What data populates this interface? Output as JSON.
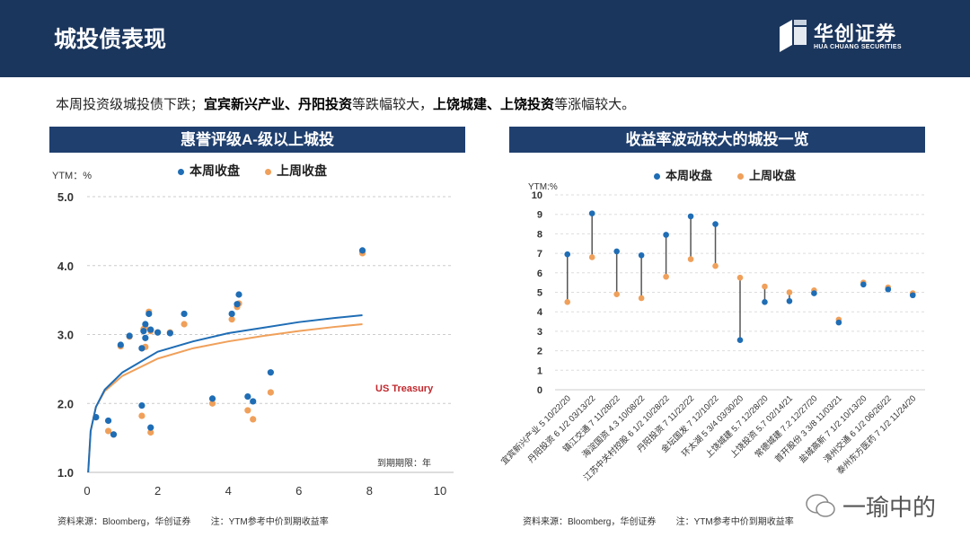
{
  "header": {
    "title": "城投债表现",
    "logo_cn": "华创证券",
    "logo_en": "HUA CHUANG SECURITIES"
  },
  "summary": {
    "p1": "本周投资级城投债下跌；",
    "b1": "宜宾新兴产业、丹阳投资",
    "p2": "等跌幅较大，",
    "b2": "上饶城建、上饶投资",
    "p3": "等涨幅较大。"
  },
  "colors": {
    "this_week": "#1f6db5",
    "last_week": "#f0a05a",
    "navy": "#1b365d"
  },
  "legend": {
    "this_week": "本周收盘",
    "last_week": "上周收盘"
  },
  "watermark": "一瑜中的",
  "chart_data": [
    {
      "type": "scatter",
      "title": "惠誉评级A-级以上城投",
      "ylabel": "YTM：%",
      "xlabel": "到期期限：年",
      "xlim": [
        0,
        10
      ],
      "ylim": [
        1.0,
        5.0
      ],
      "xticks": [
        0,
        2,
        4,
        6,
        8,
        10
      ],
      "yticks": [
        "1.0",
        "2.0",
        "3.0",
        "4.0",
        "5.0"
      ],
      "annotation": "US Treasury",
      "series": [
        {
          "name": "本周收盘",
          "points": [
            [
              0.25,
              1.8
            ],
            [
              0.6,
              1.75
            ],
            [
              0.75,
              1.55
            ],
            [
              0.95,
              2.85
            ],
            [
              1.2,
              2.98
            ],
            [
              1.55,
              2.8
            ],
            [
              1.6,
              3.05
            ],
            [
              1.65,
              3.15
            ],
            [
              1.65,
              2.95
            ],
            [
              1.75,
              3.3
            ],
            [
              1.8,
              3.07
            ],
            [
              2.0,
              3.03
            ],
            [
              1.55,
              1.97
            ],
            [
              1.8,
              1.65
            ],
            [
              2.35,
              3.02
            ],
            [
              2.75,
              3.3
            ],
            [
              3.55,
              2.07
            ],
            [
              4.1,
              3.3
            ],
            [
              4.25,
              3.44
            ],
            [
              4.3,
              3.58
            ],
            [
              4.55,
              2.1
            ],
            [
              4.7,
              2.03
            ],
            [
              5.2,
              2.45
            ],
            [
              7.8,
              4.22
            ]
          ],
          "curve": [
            [
              0.03,
              1.0
            ],
            [
              0.1,
              1.6
            ],
            [
              0.25,
              1.95
            ],
            [
              0.5,
              2.2
            ],
            [
              1,
              2.45
            ],
            [
              2,
              2.75
            ],
            [
              3,
              2.9
            ],
            [
              4,
              3.02
            ],
            [
              5,
              3.1
            ],
            [
              6,
              3.18
            ],
            [
              7,
              3.24
            ],
            [
              7.8,
              3.28
            ]
          ]
        },
        {
          "name": "上周收盘",
          "points": [
            [
              0.25,
              1.8
            ],
            [
              0.6,
              1.6
            ],
            [
              0.75,
              1.55
            ],
            [
              0.95,
              2.83
            ],
            [
              1.2,
              2.97
            ],
            [
              1.55,
              2.8
            ],
            [
              1.6,
              3.08
            ],
            [
              1.65,
              3.1
            ],
            [
              1.65,
              2.82
            ],
            [
              1.75,
              3.33
            ],
            [
              1.8,
              3.05
            ],
            [
              2.0,
              3.03
            ],
            [
              1.55,
              1.82
            ],
            [
              1.8,
              1.58
            ],
            [
              2.35,
              3.03
            ],
            [
              2.75,
              3.15
            ],
            [
              3.55,
              2.0
            ],
            [
              4.1,
              3.22
            ],
            [
              4.25,
              3.4
            ],
            [
              4.3,
              3.45
            ],
            [
              4.55,
              1.9
            ],
            [
              4.7,
              1.77
            ],
            [
              5.2,
              2.16
            ],
            [
              7.8,
              4.18
            ]
          ],
          "curve": [
            [
              0.03,
              1.0
            ],
            [
              0.1,
              1.6
            ],
            [
              0.25,
              1.95
            ],
            [
              0.5,
              2.18
            ],
            [
              1,
              2.4
            ],
            [
              2,
              2.65
            ],
            [
              3,
              2.8
            ],
            [
              4,
              2.9
            ],
            [
              5,
              2.98
            ],
            [
              6,
              3.05
            ],
            [
              7,
              3.11
            ],
            [
              7.8,
              3.15
            ]
          ]
        }
      ],
      "source": "资料来源：Bloomberg，华创证券        注：YTM参考中价到期收益率"
    },
    {
      "type": "dumbbell",
      "title": "收益率波动较大的城投一览",
      "ylabel": "YTM:%",
      "ylim": [
        0,
        10
      ],
      "yticks": [
        0,
        1,
        2,
        3,
        4,
        5,
        6,
        7,
        8,
        9,
        10
      ],
      "categories": [
        "宜宾新兴产业 5 10/22/20",
        "丹阳投资 6 1/2 03/13/22",
        "镇江交通 7 11/28/22",
        "海淀国资 4.3 10/08/22",
        "江苏中关村控股 6 1/2 10/28/22",
        "丹阳投资 7 11/22/22",
        "金坛国发 7 12/10/22",
        "环太湖 5 3/4 03/30/20",
        "上饶城建 5.7 12/28/20",
        "上饶投资 5.7 02/14/21",
        "常德城建 7.2 12/27/20",
        "首开股份 3 3/8 11/03/21",
        "盐城高新 7 1/2 10/13/20",
        "漳州交通 6 1/2 06/26/22",
        "泰州东方医药 7 1/2 11/24/20"
      ],
      "series": [
        {
          "name": "本周收盘",
          "values": [
            6.95,
            9.05,
            7.1,
            6.9,
            7.95,
            8.9,
            8.5,
            2.55,
            4.5,
            4.55,
            4.95,
            3.45,
            5.4,
            5.15,
            4.85
          ]
        },
        {
          "name": "上周收盘",
          "values": [
            4.5,
            6.8,
            4.9,
            4.7,
            5.8,
            6.7,
            6.35,
            5.75,
            5.3,
            5.0,
            5.1,
            3.6,
            5.5,
            5.25,
            4.95
          ]
        }
      ],
      "source": "资料来源：Bloomberg，华创证券        注：YTM参考中价到期收益率"
    }
  ]
}
